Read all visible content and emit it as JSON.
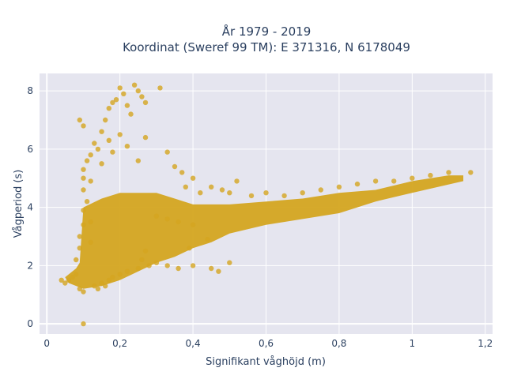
{
  "chart_data": {
    "type": "scatter",
    "title_line1": "År 1979 - 2019",
    "title_line2": "Koordinat (Sweref 99 TM): E 371316, N 6178049",
    "xlabel": "Signifikant våghöjd (m)",
    "ylabel": "Vågperiod (s)",
    "xlim": [
      -0.02,
      1.22
    ],
    "ylim": [
      -0.35,
      8.6
    ],
    "x_ticks": [
      0,
      0.2,
      0.4,
      0.6,
      0.8,
      1,
      1.2
    ],
    "x_tick_labels": [
      "0",
      "0,2",
      "0,4",
      "0,6",
      "0,8",
      "1",
      "1,2"
    ],
    "y_ticks": [
      0,
      2,
      4,
      6,
      8
    ],
    "y_tick_labels": [
      "0",
      "2",
      "4",
      "6",
      "8"
    ],
    "grid": true,
    "marker_color": "#d4a520",
    "background_color": "#e5e5ef",
    "points": [
      [
        0.04,
        1.5
      ],
      [
        0.05,
        1.4
      ],
      [
        0.06,
        1.5
      ],
      [
        0.07,
        1.6
      ],
      [
        0.08,
        1.7
      ],
      [
        0.09,
        1.2
      ],
      [
        0.1,
        1.1
      ],
      [
        0.1,
        0.0
      ],
      [
        0.08,
        2.2
      ],
      [
        0.09,
        2.6
      ],
      [
        0.09,
        3.0
      ],
      [
        0.1,
        3.4
      ],
      [
        0.1,
        3.9
      ],
      [
        0.11,
        4.2
      ],
      [
        0.1,
        4.6
      ],
      [
        0.1,
        5.0
      ],
      [
        0.1,
        5.3
      ],
      [
        0.11,
        5.6
      ],
      [
        0.12,
        4.9
      ],
      [
        0.12,
        3.5
      ],
      [
        0.12,
        2.8
      ],
      [
        0.13,
        1.3
      ],
      [
        0.14,
        1.2
      ],
      [
        0.15,
        1.4
      ],
      [
        0.16,
        1.3
      ],
      [
        0.17,
        1.5
      ],
      [
        0.18,
        1.6
      ],
      [
        0.2,
        1.7
      ],
      [
        0.22,
        1.8
      ],
      [
        0.25,
        1.9
      ],
      [
        0.28,
        2.0
      ],
      [
        0.3,
        2.1
      ],
      [
        0.12,
        5.8
      ],
      [
        0.13,
        6.2
      ],
      [
        0.15,
        6.6
      ],
      [
        0.16,
        7.0
      ],
      [
        0.17,
        7.4
      ],
      [
        0.18,
        7.6
      ],
      [
        0.19,
        7.7
      ],
      [
        0.2,
        8.1
      ],
      [
        0.21,
        7.9
      ],
      [
        0.22,
        7.5
      ],
      [
        0.23,
        7.2
      ],
      [
        0.24,
        8.2
      ],
      [
        0.25,
        8.0
      ],
      [
        0.26,
        7.8
      ],
      [
        0.27,
        7.6
      ],
      [
        0.31,
        8.1
      ],
      [
        0.09,
        7.0
      ],
      [
        0.1,
        6.8
      ],
      [
        0.14,
        6.0
      ],
      [
        0.15,
        5.5
      ],
      [
        0.17,
        6.3
      ],
      [
        0.18,
        5.9
      ],
      [
        0.2,
        6.5
      ],
      [
        0.22,
        6.1
      ],
      [
        0.25,
        5.6
      ],
      [
        0.27,
        6.4
      ],
      [
        0.33,
        5.9
      ],
      [
        0.35,
        5.4
      ],
      [
        0.37,
        5.2
      ],
      [
        0.4,
        5.0
      ],
      [
        0.38,
        4.7
      ],
      [
        0.42,
        4.5
      ],
      [
        0.45,
        4.7
      ],
      [
        0.48,
        4.6
      ],
      [
        0.5,
        4.5
      ],
      [
        0.52,
        4.9
      ],
      [
        0.56,
        4.4
      ],
      [
        0.6,
        4.5
      ],
      [
        0.65,
        4.4
      ],
      [
        0.7,
        4.5
      ],
      [
        0.75,
        4.6
      ],
      [
        0.8,
        4.7
      ],
      [
        0.85,
        4.8
      ],
      [
        0.9,
        4.9
      ],
      [
        0.95,
        4.9
      ],
      [
        1.0,
        5.0
      ],
      [
        1.05,
        5.1
      ],
      [
        1.1,
        5.2
      ],
      [
        1.16,
        5.2
      ],
      [
        0.5,
        2.1
      ],
      [
        0.45,
        1.9
      ],
      [
        0.47,
        1.8
      ],
      [
        0.4,
        2.0
      ],
      [
        0.36,
        1.9
      ],
      [
        0.33,
        2.0
      ],
      [
        0.39,
        2.6
      ],
      [
        0.26,
        2.2
      ],
      [
        0.27,
        2.5
      ],
      [
        0.3,
        3.7
      ],
      [
        0.33,
        3.6
      ],
      [
        0.36,
        3.5
      ],
      [
        0.4,
        3.4
      ],
      [
        0.44,
        2.9
      ]
    ]
  }
}
